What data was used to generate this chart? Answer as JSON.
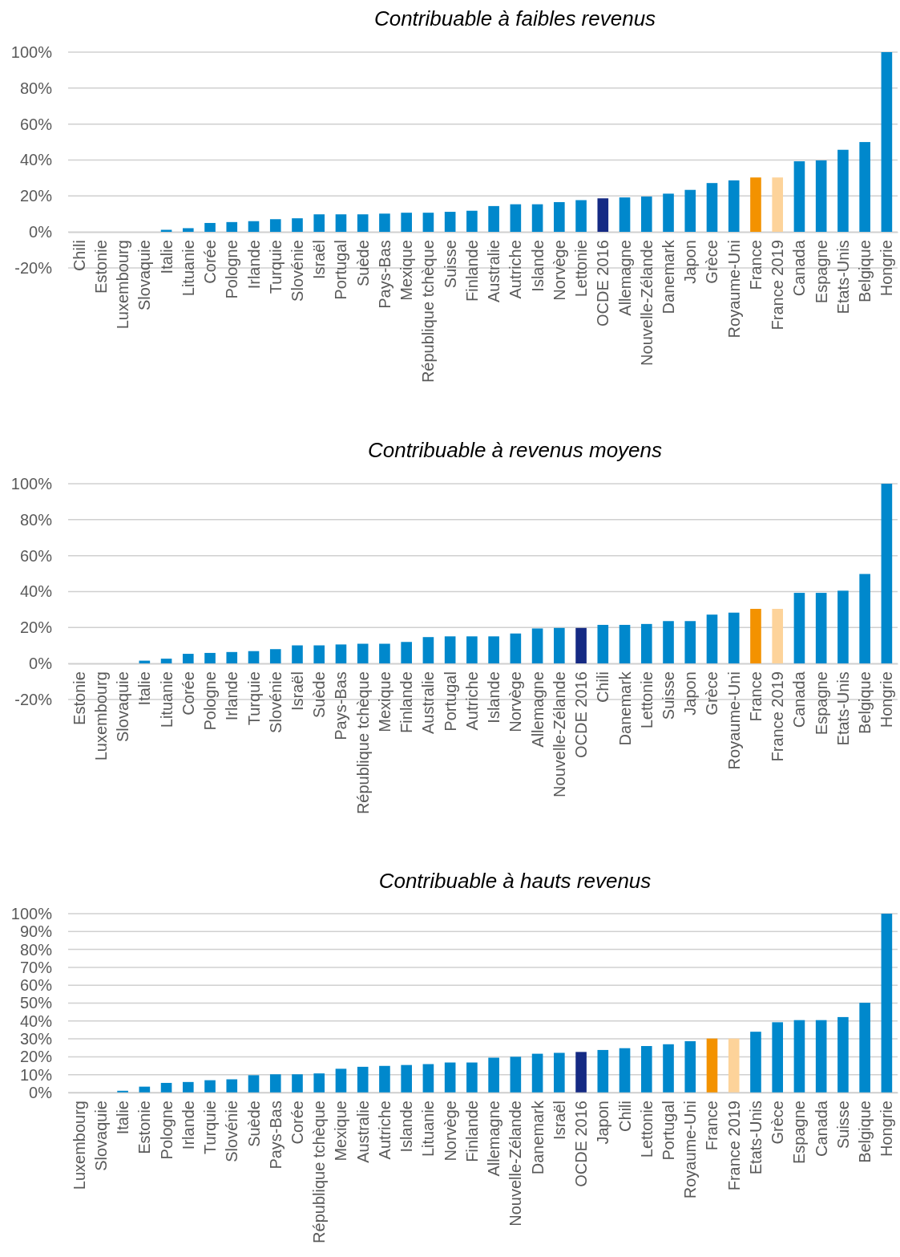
{
  "chart_data": [
    {
      "type": "bar",
      "title": "Contribuable à faibles revenus",
      "categories": [
        "Chili",
        "Estonie",
        "Luxembourg",
        "Slovaquie",
        "Italie",
        "Lituanie",
        "Corée",
        "Pologne",
        "Irlande",
        "Turquie",
        "Slovénie",
        "Israël",
        "Portugal",
        "Suède",
        "Pays-Bas",
        "Mexique",
        "République tchèque",
        "Suisse",
        "Finlande",
        "Australie",
        "Autriche",
        "Islande",
        "Norvège",
        "Lettonie",
        "OCDE 2016",
        "Allemagne",
        "Nouvelle-Zélande",
        "Danemark",
        "Japon",
        "Grèce",
        "Royaume-Uni",
        "France",
        "France 2019",
        "Canada",
        "Espagne",
        "Etats-Unis",
        "Belgique",
        "Hongrie"
      ],
      "values": [
        0,
        0,
        0,
        0,
        1.2,
        2.1,
        5,
        5.5,
        6,
        7.1,
        7.6,
        9.8,
        9.8,
        9.8,
        10.2,
        10.7,
        10.7,
        11.2,
        11.8,
        14.4,
        15.4,
        15.4,
        16.6,
        17.7,
        18.7,
        19.2,
        19.7,
        21.3,
        23.4,
        27.2,
        28.7,
        30.3,
        30.3,
        39.3,
        39.8,
        45.7,
        50,
        100
      ],
      "colors": [
        "#0088cc",
        "#0088cc",
        "#0088cc",
        "#0088cc",
        "#0088cc",
        "#0088cc",
        "#0088cc",
        "#0088cc",
        "#0088cc",
        "#0088cc",
        "#0088cc",
        "#0088cc",
        "#0088cc",
        "#0088cc",
        "#0088cc",
        "#0088cc",
        "#0088cc",
        "#0088cc",
        "#0088cc",
        "#0088cc",
        "#0088cc",
        "#0088cc",
        "#0088cc",
        "#0088cc",
        "#152a84",
        "#0088cc",
        "#0088cc",
        "#0088cc",
        "#0088cc",
        "#0088cc",
        "#0088cc",
        "#f39200",
        "#fdd39a",
        "#0088cc",
        "#0088cc",
        "#0088cc",
        "#0088cc",
        "#0088cc"
      ],
      "ylim": [
        -20,
        100
      ],
      "yticks": [
        {
          "value": -20,
          "label": "-20%"
        },
        {
          "value": 0,
          "label": "0%"
        },
        {
          "value": 20,
          "label": "20%"
        },
        {
          "value": 40,
          "label": "40%"
        },
        {
          "value": 60,
          "label": "60%"
        },
        {
          "value": 80,
          "label": "80%"
        },
        {
          "value": 100,
          "label": "100%"
        }
      ],
      "grid": "y"
    },
    {
      "type": "bar",
      "title": "Contribuable à revenus moyens",
      "categories": [
        "Estonie",
        "Luxembourg",
        "Slovaquie",
        "Italie",
        "Lituanie",
        "Corée",
        "Pologne",
        "Irlande",
        "Turquie",
        "Slovénie",
        "Israël",
        "Suède",
        "Pays-Bas",
        "République tchèque",
        "Mexique",
        "Finlande",
        "Australie",
        "Portugal",
        "Autriche",
        "Islande",
        "Norvège",
        "Allemagne",
        "Nouvelle-Zélande",
        "OCDE 2016",
        "Chili",
        "Danemark",
        "Lettonie",
        "Suisse",
        "Japon",
        "Grèce",
        "Royaume-Uni",
        "France",
        "France 2019",
        "Canada",
        "Espagne",
        "Etats-Unis",
        "Belgique",
        "Hongrie"
      ],
      "values": [
        0,
        0,
        0,
        1.6,
        2.7,
        5.4,
        5.9,
        6.4,
        6.9,
        8,
        10.1,
        10.1,
        10.6,
        11,
        11,
        12,
        14.7,
        15.1,
        15.1,
        15.1,
        16.7,
        19.5,
        19.8,
        19.8,
        21.5,
        21.5,
        22,
        23.6,
        23.6,
        27.2,
        28.3,
        30.4,
        30.4,
        39.3,
        39.3,
        40.5,
        49.8,
        100
      ],
      "colors": [
        "#0088cc",
        "#0088cc",
        "#0088cc",
        "#0088cc",
        "#0088cc",
        "#0088cc",
        "#0088cc",
        "#0088cc",
        "#0088cc",
        "#0088cc",
        "#0088cc",
        "#0088cc",
        "#0088cc",
        "#0088cc",
        "#0088cc",
        "#0088cc",
        "#0088cc",
        "#0088cc",
        "#0088cc",
        "#0088cc",
        "#0088cc",
        "#0088cc",
        "#0088cc",
        "#152a84",
        "#0088cc",
        "#0088cc",
        "#0088cc",
        "#0088cc",
        "#0088cc",
        "#0088cc",
        "#0088cc",
        "#f39200",
        "#fdd39a",
        "#0088cc",
        "#0088cc",
        "#0088cc",
        "#0088cc",
        "#0088cc"
      ],
      "ylim": [
        -20,
        100
      ],
      "yticks": [
        {
          "value": -20,
          "label": "-20%"
        },
        {
          "value": 0,
          "label": "0%"
        },
        {
          "value": 20,
          "label": "20%"
        },
        {
          "value": 40,
          "label": "40%"
        },
        {
          "value": 60,
          "label": "60%"
        },
        {
          "value": 80,
          "label": "80%"
        },
        {
          "value": 100,
          "label": "100%"
        }
      ],
      "grid": "y"
    },
    {
      "type": "bar",
      "title": "Contribuable à hauts revenus",
      "categories": [
        "Luxembourg",
        "Slovaquie",
        "Italie",
        "Estonie",
        "Pologne",
        "Irlande",
        "Turquie",
        "Slovénie",
        "Suède",
        "Pays-Bas",
        "Corée",
        "République tchèque",
        "Mexique",
        "Australie",
        "Autriche",
        "Islande",
        "Lituanie",
        "Norvège",
        "Finlande",
        "Allemagne",
        "Nouvelle-Zélande",
        "Danemark",
        "Israël",
        "OCDE 2016",
        "Japon",
        "Chili",
        "Lettonie",
        "Portugal",
        "Royaume-Uni",
        "France",
        "France 2019",
        "Etats-Unis",
        "Grèce",
        "Espagne",
        "Canada",
        "Suisse",
        "Belgique",
        "Hongrie"
      ],
      "values": [
        0,
        0,
        1,
        3.3,
        5.4,
        5.9,
        6.9,
        7.4,
        9.7,
        10.2,
        10.2,
        10.7,
        13.3,
        14.4,
        14.9,
        15.4,
        15.9,
        16.8,
        16.8,
        19.5,
        20,
        21.7,
        22.2,
        22.7,
        23.8,
        24.8,
        26,
        27,
        28.7,
        30.2,
        30.2,
        34,
        39.3,
        40.5,
        40.5,
        42.2,
        50.2,
        100
      ],
      "colors": [
        "#0088cc",
        "#0088cc",
        "#0088cc",
        "#0088cc",
        "#0088cc",
        "#0088cc",
        "#0088cc",
        "#0088cc",
        "#0088cc",
        "#0088cc",
        "#0088cc",
        "#0088cc",
        "#0088cc",
        "#0088cc",
        "#0088cc",
        "#0088cc",
        "#0088cc",
        "#0088cc",
        "#0088cc",
        "#0088cc",
        "#0088cc",
        "#0088cc",
        "#0088cc",
        "#152a84",
        "#0088cc",
        "#0088cc",
        "#0088cc",
        "#0088cc",
        "#0088cc",
        "#f39200",
        "#fdd39a",
        "#0088cc",
        "#0088cc",
        "#0088cc",
        "#0088cc",
        "#0088cc",
        "#0088cc",
        "#0088cc"
      ],
      "ylim": [
        0,
        100
      ],
      "yticks": [
        {
          "value": 0,
          "label": "0%"
        },
        {
          "value": 10,
          "label": "10%"
        },
        {
          "value": 20,
          "label": "20%"
        },
        {
          "value": 30,
          "label": "30%"
        },
        {
          "value": 40,
          "label": "40%"
        },
        {
          "value": 50,
          "label": "50%"
        },
        {
          "value": 60,
          "label": "60%"
        },
        {
          "value": 70,
          "label": "70%"
        },
        {
          "value": 80,
          "label": "80%"
        },
        {
          "value": 90,
          "label": "90%"
        },
        {
          "value": 100,
          "label": "100%"
        }
      ],
      "grid": "y"
    }
  ]
}
